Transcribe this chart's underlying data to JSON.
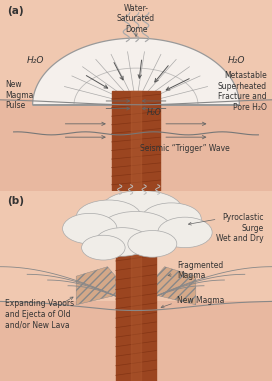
{
  "bg_color": "#f0c8b0",
  "panel_sep_color": "#d4a090",
  "panel_a_label": "(a)",
  "panel_b_label": "(b)",
  "labels_a": {
    "water_sat_dome": "Water-\nSaturated\nDome",
    "h2o_left": "H₂O",
    "h2o_right": "H₂O",
    "h2o_center": "H₂O",
    "new_magma": "New\nMagma\nPulse",
    "metastable": "Metastable\nSuperheated\nFracture and\nPore H₂O",
    "seismic": "Seismic “Trigger” Wave"
  },
  "labels_b": {
    "pyroclastic": "Pyroclastic\nSurge\nWet and Dry",
    "expanding": "Expanding Vapors\nand Ejecta of Old\nand/or New Lava",
    "fragmented": "Fragmented\nMagma",
    "new_magma": "New Magma"
  },
  "magma_color": "#9b4520",
  "magma_dark": "#7a2e10",
  "magma_light": "#b05a30",
  "dome_fill": "#f5f0ec",
  "dome_edge": "#999999",
  "ground_color": "#e8b8a0",
  "cloud_fill": "#f0ede8",
  "cloud_edge": "#aaaaaa",
  "line_color": "#666666",
  "text_color": "#333333",
  "font_size": 6.0
}
